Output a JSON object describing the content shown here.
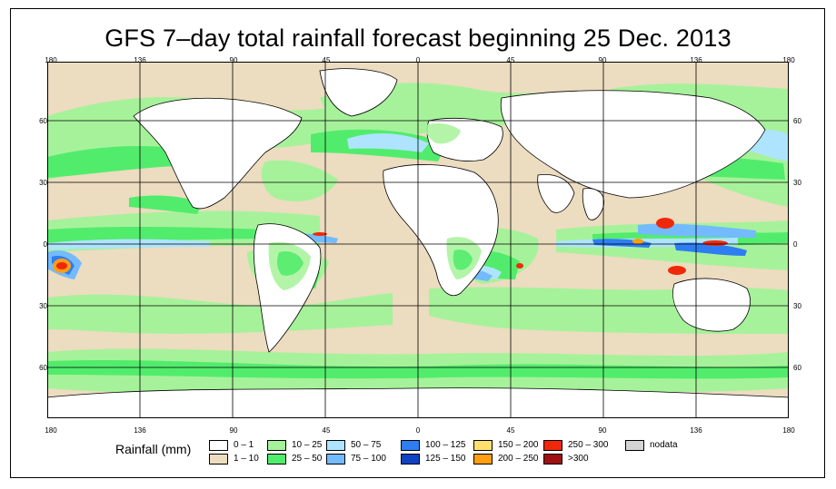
{
  "title": "GFS 7–day total rainfall forecast beginning 25 Dec. 2013",
  "x_ticks": [
    "180",
    "136",
    "90",
    "45",
    "0",
    "45",
    "90",
    "136",
    "180"
  ],
  "y_ticks": [
    "60",
    "30",
    "0",
    "30",
    "60"
  ],
  "legend": {
    "title": "Rainfall (mm)",
    "items": [
      {
        "label": "0 – 1",
        "color": "#ffffff"
      },
      {
        "label": "1 – 10",
        "color": "#ecdcc0"
      },
      {
        "label": "10 – 25",
        "color": "#a6f29a"
      },
      {
        "label": "25 – 50",
        "color": "#52ec6c"
      },
      {
        "label": "50 – 75",
        "color": "#aee4ff"
      },
      {
        "label": "75 – 100",
        "color": "#74baff"
      },
      {
        "label": "100 – 125",
        "color": "#2f7df2"
      },
      {
        "label": "125 – 150",
        "color": "#1042c4"
      },
      {
        "label": "150 – 200",
        "color": "#ffe06e"
      },
      {
        "label": "200 – 250",
        "color": "#ff9e10"
      },
      {
        "label": "250 – 300",
        "color": "#f0280a"
      },
      {
        "label": ">300",
        "color": "#a01010"
      },
      {
        "label": "nodata",
        "color": "#d4d4d4"
      }
    ]
  },
  "colors": {
    "ocean_dry": "#ecdcc0",
    "land": "#ffffff",
    "light_rain": "#a6f29a",
    "moderate_rain": "#52ec6c",
    "heavy_rain": "#aee4ff",
    "very_heavy": "#74baff",
    "extreme": "#f0280a"
  }
}
